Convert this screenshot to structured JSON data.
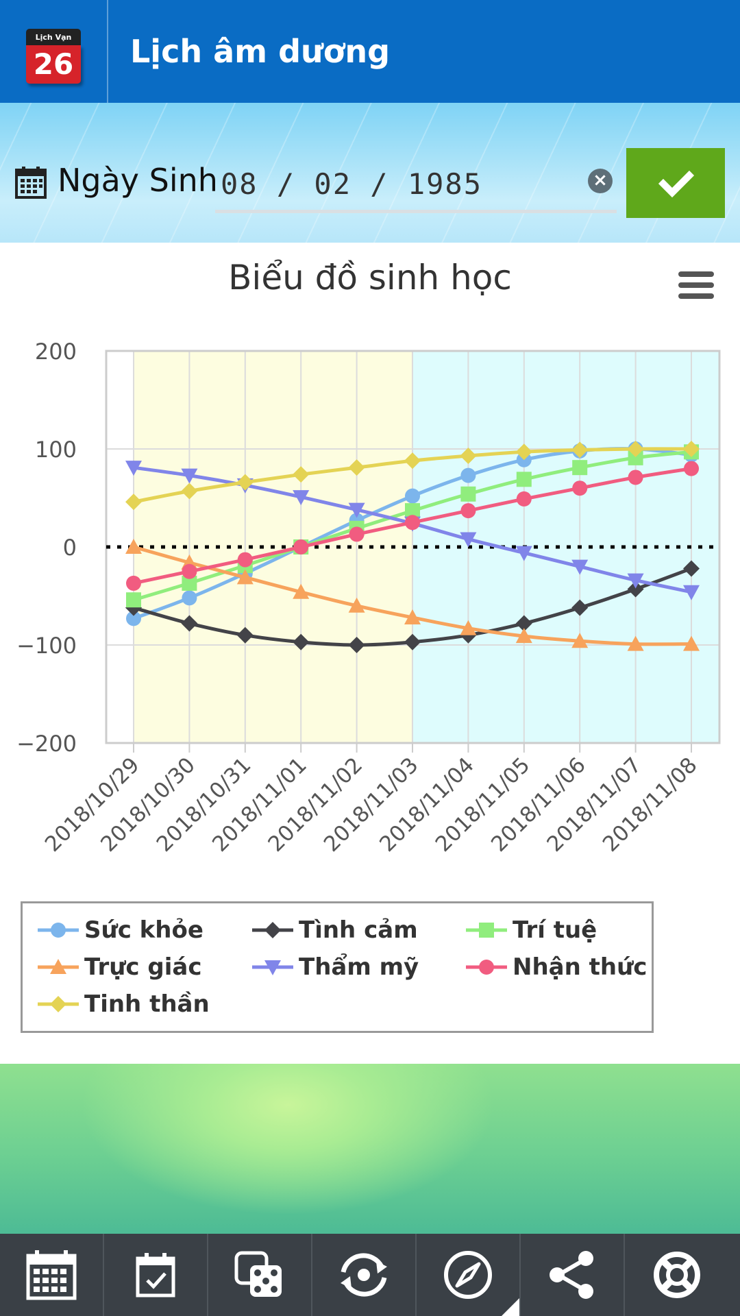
{
  "header": {
    "app_icon_top": "Lịch Vạn Niên",
    "app_icon_day": "26",
    "title": "Lịch âm dương"
  },
  "birthdate": {
    "label": "Ngày Sinh",
    "value": "08 / 02 / 1985",
    "clear_icon": "close-circle-icon",
    "confirm_icon": "check-icon"
  },
  "colors": {
    "header_bg": "#0a6cc4",
    "confirm_bg": "#5fa81b",
    "nav_bg": "#3a4046"
  },
  "chart_data": {
    "type": "line",
    "title": "Biểu đồ sinh học",
    "xlabel": "",
    "ylabel": "",
    "ylim": [
      -200,
      200
    ],
    "yticks": [
      "200",
      "100",
      "0",
      "−100",
      "−200"
    ],
    "categories": [
      "2018/10/29",
      "2018/10/30",
      "2018/10/31",
      "2018/11/01",
      "2018/11/02",
      "2018/11/03",
      "2018/11/04",
      "2018/11/05",
      "2018/11/06",
      "2018/11/07",
      "2018/11/08"
    ],
    "zero_line": "dotted",
    "bands": [
      {
        "from": 0,
        "to": 5,
        "color": "#fdfde0"
      },
      {
        "from": 5,
        "to": 10.5,
        "color": "#defcfd"
      }
    ],
    "legend_position": "bottom-left",
    "series": [
      {
        "name": "Sức khỏe",
        "color": "#7cb5ec",
        "marker": "circle",
        "values": [
          -73,
          -52,
          -27,
          0,
          27,
          52,
          73,
          89,
          98,
          100,
          94
        ]
      },
      {
        "name": "Tình cảm",
        "color": "#434348",
        "marker": "diamond",
        "values": [
          -62,
          -78,
          -90,
          -97,
          -100,
          -97,
          -90,
          -78,
          -62,
          -43,
          -22
        ]
      },
      {
        "name": "Trí tuệ",
        "color": "#90ed7d",
        "marker": "square",
        "values": [
          -54,
          -37,
          -19,
          0,
          19,
          37,
          54,
          69,
          81,
          91,
          97
        ]
      },
      {
        "name": "Trực giác",
        "color": "#f7a35c",
        "marker": "triangle",
        "values": [
          0,
          -16,
          -31,
          -46,
          -60,
          -72,
          -83,
          -91,
          -96,
          -99,
          -99
        ]
      },
      {
        "name": "Thẩm mỹ",
        "color": "#8085e9",
        "marker": "triangle-down",
        "values": [
          81,
          73,
          63,
          51,
          38,
          24,
          8,
          -6,
          -20,
          -34,
          -46
        ]
      },
      {
        "name": "Nhận thức",
        "color": "#f15c80",
        "marker": "circle",
        "values": [
          -37,
          -25,
          -13,
          0,
          13,
          25,
          37,
          49,
          60,
          71,
          80
        ]
      },
      {
        "name": "Tinh thần",
        "color": "#e4d354",
        "marker": "diamond",
        "values": [
          46,
          57,
          66,
          74,
          81,
          88,
          93,
          97,
          99,
          100,
          100
        ]
      }
    ]
  },
  "bottom_nav": [
    {
      "icon": "calendar-grid-icon"
    },
    {
      "icon": "calendar-check-icon"
    },
    {
      "icon": "dice-icon"
    },
    {
      "icon": "converter-icon"
    },
    {
      "icon": "compass-icon"
    },
    {
      "icon": "share-icon"
    },
    {
      "icon": "lifebuoy-icon"
    }
  ]
}
